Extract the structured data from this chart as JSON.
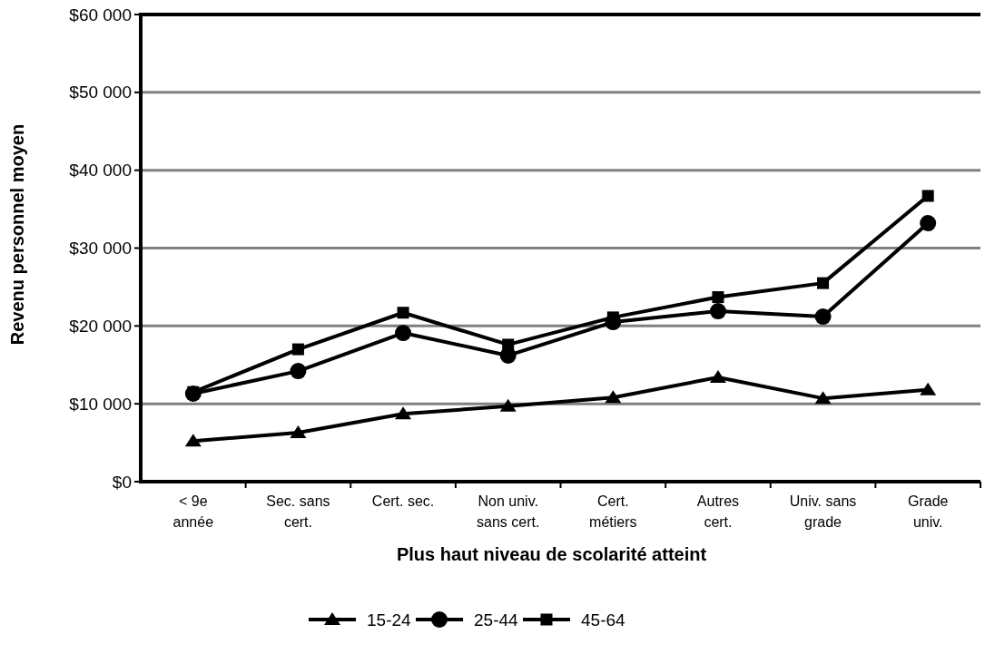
{
  "chart_data": {
    "type": "line",
    "xlabel": "Plus haut niveau de scolarité atteint",
    "ylabel": "Revenu personnel moyen",
    "categories": [
      "< 9e\nannée",
      "Sec. sans\ncert.",
      "Cert. sec.",
      "Non univ.\nsans cert.",
      "Cert.\nmétiers",
      "Autres\ncert.",
      "Univ. sans\ngrade",
      "Grade\nuniv."
    ],
    "ylim": [
      0,
      60000
    ],
    "yticks": [
      {
        "value": 0,
        "label": "$0"
      },
      {
        "value": 10000,
        "label": "$10 000"
      },
      {
        "value": 20000,
        "label": "$20 000"
      },
      {
        "value": 30000,
        "label": "$30 000"
      },
      {
        "value": 40000,
        "label": "$40 000"
      },
      {
        "value": 50000,
        "label": "$50 000"
      },
      {
        "value": 60000,
        "label": "$60 000"
      }
    ],
    "grid": "y",
    "legend": "bottom",
    "line_style": "solid",
    "series": [
      {
        "name": "15-24",
        "color": "#000000",
        "marker": "triangle",
        "values": [
          5200,
          6300,
          8700,
          9700,
          10800,
          13400,
          10700,
          11800
        ]
      },
      {
        "name": "25-44",
        "color": "#000000",
        "marker": "circle",
        "values": [
          11300,
          14200,
          19100,
          16200,
          20500,
          21900,
          21200,
          33200
        ]
      },
      {
        "name": "45-64",
        "color": "#000000",
        "marker": "square",
        "values": [
          11500,
          17000,
          21700,
          17600,
          21100,
          23700,
          25500,
          36700
        ]
      }
    ]
  }
}
